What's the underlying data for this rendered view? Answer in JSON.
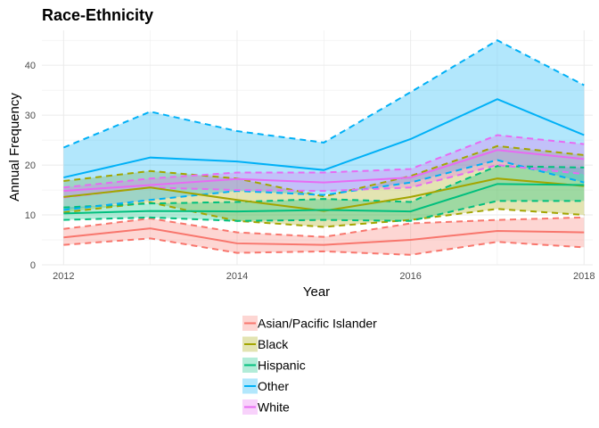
{
  "chart_data": {
    "type": "line",
    "title": "Race-Ethnicity",
    "xlabel": "Year",
    "ylabel": "Annual Frequency",
    "x": [
      2012,
      2013,
      2014,
      2015,
      2016,
      2017,
      2018
    ],
    "x_ticks": [
      "2012",
      "2014",
      "2016",
      "2018"
    ],
    "y_ticks": [
      "0",
      "10",
      "20",
      "30",
      "40"
    ],
    "xlim": [
      2011.75,
      2018.1
    ],
    "ylim": [
      0,
      47
    ],
    "grid": true,
    "legend_position": "bottom",
    "series": [
      {
        "name": "Asian/Pacific Islander",
        "color": "#F8766D",
        "values": [
          5.5,
          7.3,
          4.3,
          4.0,
          5.0,
          6.8,
          6.5
        ],
        "lower": [
          4.0,
          5.3,
          2.4,
          2.7,
          2.0,
          4.6,
          3.5
        ],
        "upper": [
          7.2,
          9.3,
          6.5,
          5.6,
          8.3,
          9.0,
          9.5
        ]
      },
      {
        "name": "Black",
        "color": "#A3A500",
        "values": [
          13.6,
          15.5,
          13.0,
          10.8,
          13.6,
          17.3,
          15.8
        ],
        "lower": [
          10.5,
          12.5,
          8.8,
          7.6,
          9.0,
          11.2,
          10.0
        ],
        "upper": [
          16.8,
          18.8,
          17.3,
          13.7,
          17.8,
          23.8,
          22.0
        ]
      },
      {
        "name": "Hispanic",
        "color": "#00BF7D",
        "values": [
          10.3,
          10.8,
          10.7,
          11.0,
          10.7,
          16.2,
          16.0
        ],
        "lower": [
          9.0,
          9.5,
          8.8,
          9.0,
          8.8,
          12.8,
          12.8
        ],
        "upper": [
          11.5,
          12.3,
          12.6,
          13.2,
          12.6,
          19.8,
          19.5
        ]
      },
      {
        "name": "Other",
        "color": "#00B0F6",
        "values": [
          17.5,
          21.5,
          20.7,
          19.0,
          25.2,
          33.2,
          26.0
        ],
        "lower": [
          11.0,
          13.0,
          14.8,
          14.0,
          16.5,
          21.0,
          16.5
        ],
        "upper": [
          23.5,
          30.7,
          26.8,
          24.5,
          34.6,
          45.0,
          36.0
        ]
      },
      {
        "name": "White",
        "color": "#E76BF3",
        "values": [
          14.8,
          16.0,
          17.2,
          16.5,
          17.5,
          23.0,
          21.2
        ],
        "lower": [
          13.5,
          15.5,
          15.0,
          14.8,
          15.5,
          20.0,
          18.2
        ],
        "upper": [
          15.5,
          17.3,
          18.5,
          18.5,
          19.2,
          26.0,
          24.2
        ]
      }
    ]
  }
}
